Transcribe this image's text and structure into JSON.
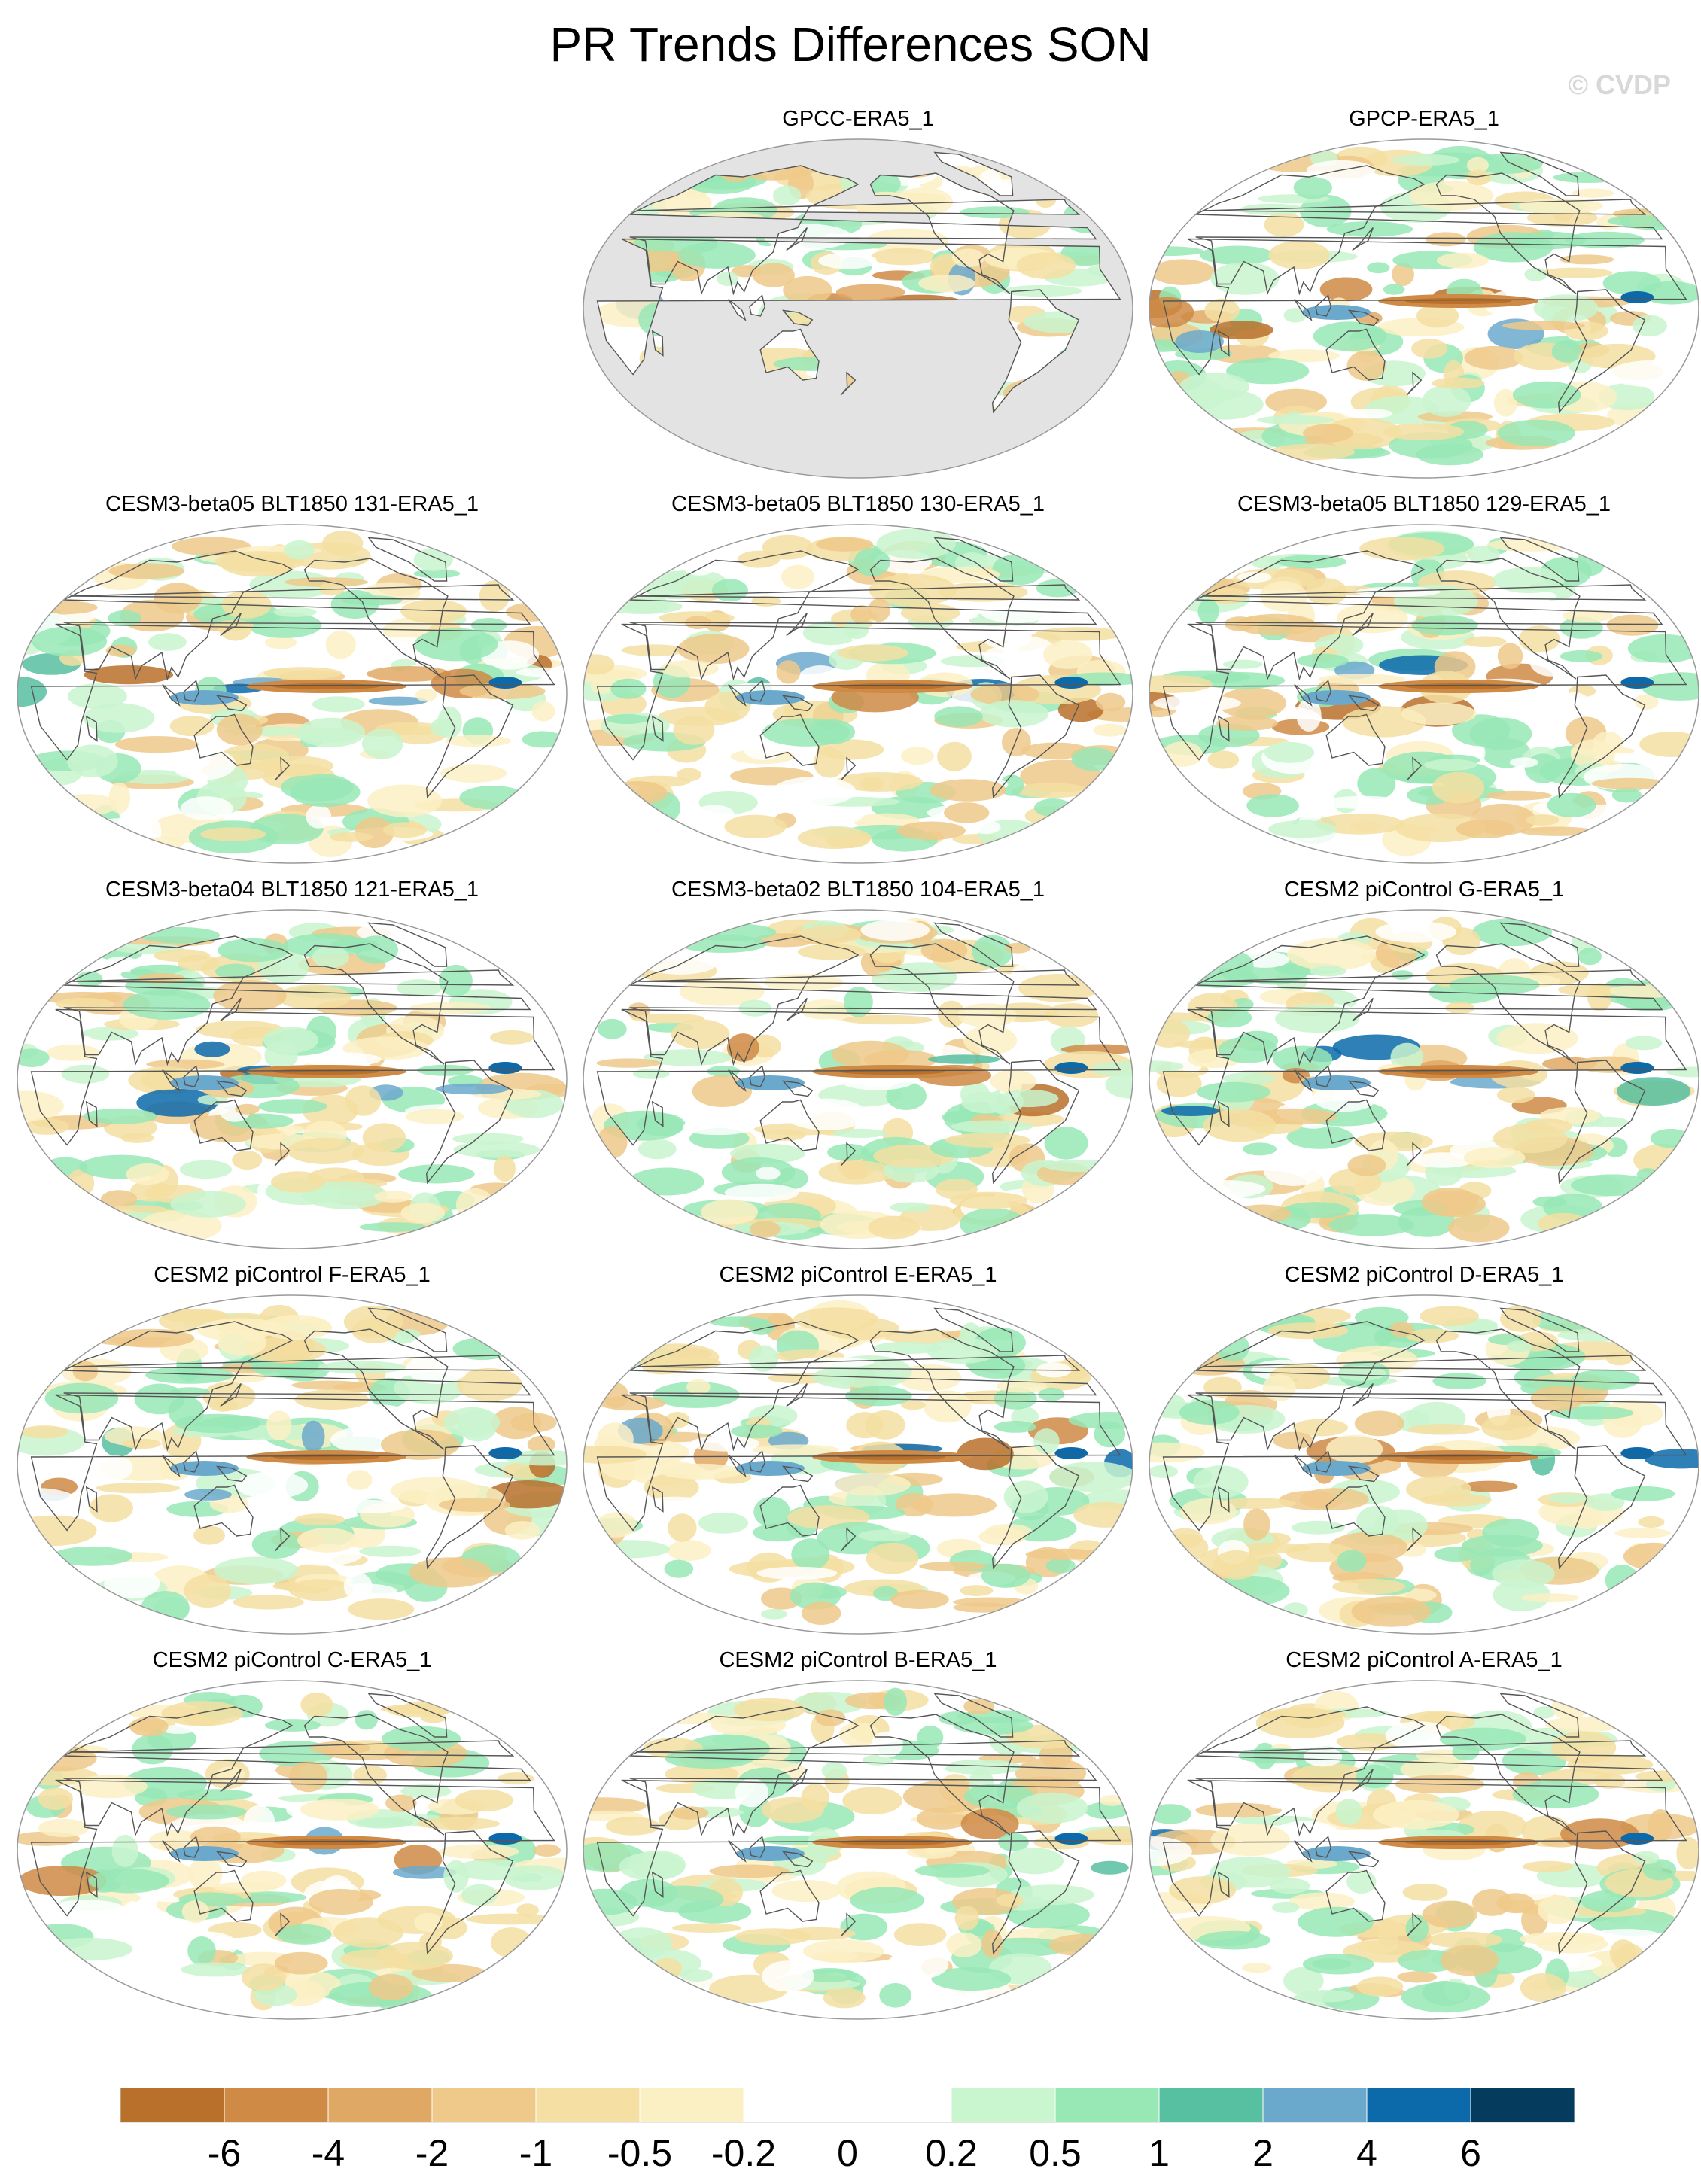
{
  "title": "PR Trends Differences SON",
  "watermark": "© CVDP",
  "panels": [
    {
      "label": "GPCC-ERA5_1",
      "land_only": true
    },
    {
      "label": "GPCP-ERA5_1",
      "land_only": false
    },
    {
      "label": "CESM3-beta05 BLT1850 131-ERA5_1",
      "land_only": false
    },
    {
      "label": "CESM3-beta05 BLT1850 130-ERA5_1",
      "land_only": false
    },
    {
      "label": "CESM3-beta05 BLT1850 129-ERA5_1",
      "land_only": false
    },
    {
      "label": "CESM3-beta04 BLT1850 121-ERA5_1",
      "land_only": false
    },
    {
      "label": "CESM3-beta02 BLT1850 104-ERA5_1",
      "land_only": false
    },
    {
      "label": "CESM2 piControl G-ERA5_1",
      "land_only": false
    },
    {
      "label": "CESM2 piControl F-ERA5_1",
      "land_only": false
    },
    {
      "label": "CESM2 piControl E-ERA5_1",
      "land_only": false
    },
    {
      "label": "CESM2 piControl D-ERA5_1",
      "land_only": false
    },
    {
      "label": "CESM2 piControl C-ERA5_1",
      "land_only": false
    },
    {
      "label": "CESM2 piControl B-ERA5_1",
      "land_only": false
    },
    {
      "label": "CESM2 piControl A-ERA5_1",
      "land_only": false
    }
  ],
  "colorbar": {
    "tick_labels": [
      "-6",
      "-4",
      "-2",
      "-1",
      "-0.5",
      "-0.2",
      "0",
      "0.2",
      "0.5",
      "1",
      "2",
      "4",
      "6"
    ],
    "colors": [
      "#b8702a",
      "#cf8a45",
      "#e0a865",
      "#eec98a",
      "#f5dfa2",
      "#fbf0c4",
      "#ffffff",
      "#ffffff",
      "#c9f5cf",
      "#98e8b6",
      "#57c0a0",
      "#6ba9cc",
      "#0c6aab",
      "#053c5e"
    ]
  },
  "map_colors": {
    "missing": "#e3e3e3",
    "coast": "#555555",
    "border": "#999999"
  }
}
